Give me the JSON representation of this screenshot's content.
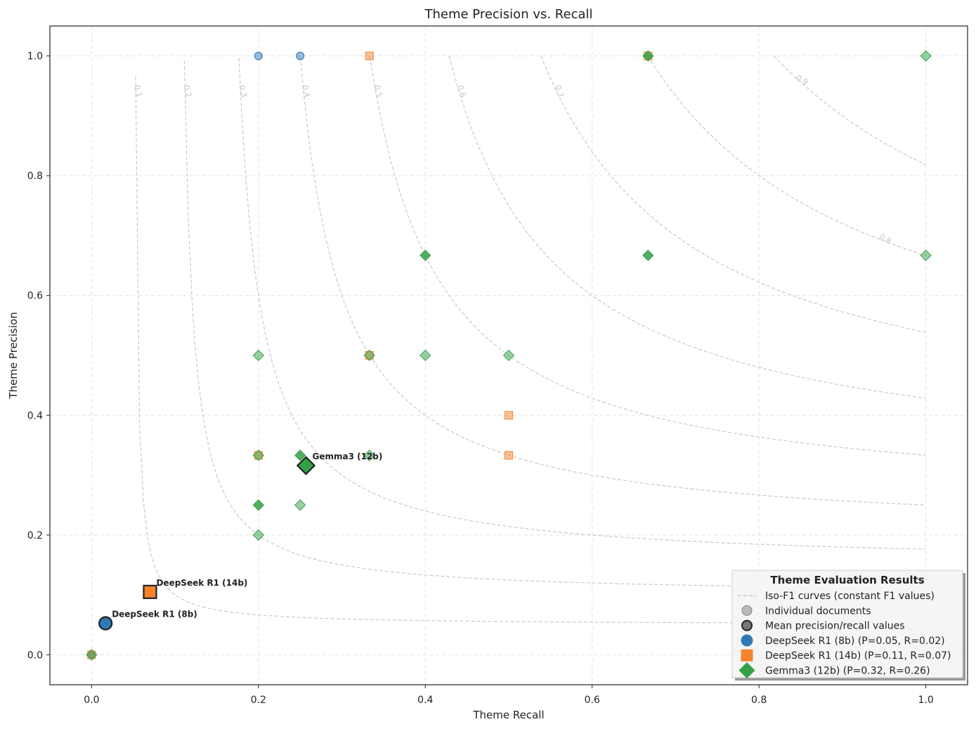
{
  "chart_data": {
    "type": "scatter",
    "title": "Theme Precision vs. Recall",
    "xlabel": "Theme Recall",
    "ylabel": "Theme Precision",
    "xlim": [
      -0.05,
      1.05
    ],
    "ylim": [
      -0.05,
      1.05
    ],
    "xticks": [
      "0.0",
      "0.2",
      "0.4",
      "0.6",
      "0.8",
      "1.0"
    ],
    "yticks": [
      "0.0",
      "0.2",
      "0.4",
      "0.6",
      "0.8",
      "1.0"
    ],
    "grid": true,
    "colors": {
      "deepseek_8b": "#2e7ab6",
      "deepseek_14b": "#f5842b",
      "gemma3_12b": "#34a048",
      "iso_curve": "#c8c8c8"
    },
    "iso_f1": {
      "labels": [
        "0.1",
        "0.2",
        "0.3",
        "0.4",
        "0.5",
        "0.6",
        "0.7",
        "0.8",
        "0.9"
      ],
      "values": [
        0.1,
        0.2,
        0.3,
        0.4,
        0.5,
        0.6,
        0.7,
        0.8,
        0.9
      ]
    },
    "series": [
      {
        "name": "DeepSeek R1 (8b)",
        "marker": "circle",
        "x": [
          0.2,
          0.25,
          0.0
        ],
        "y": [
          1.0,
          1.0,
          0.0
        ],
        "mean": {
          "x": 0.0167,
          "y": 0.0526,
          "label": "DeepSeek R1 (8b)"
        }
      },
      {
        "name": "DeepSeek R1 (14b)",
        "marker": "square",
        "x": [
          0.333,
          0.667,
          0.333,
          0.5,
          0.5,
          0.2,
          0.0
        ],
        "y": [
          1.0,
          1.0,
          0.5,
          0.4,
          0.333,
          0.333,
          0.0
        ],
        "mean": {
          "x": 0.07,
          "y": 0.105,
          "label": "DeepSeek R1 (14b)"
        }
      },
      {
        "name": "Gemma3 (12b)",
        "marker": "diamond",
        "x": [
          0.667,
          1.0,
          0.4,
          0.667,
          1.0,
          0.2,
          0.333,
          0.4,
          0.5,
          0.2,
          0.25,
          0.333,
          0.2,
          0.25,
          0.2,
          0.0
        ],
        "y": [
          1.0,
          1.0,
          0.667,
          0.667,
          0.667,
          0.5,
          0.5,
          0.5,
          0.5,
          0.333,
          0.333,
          0.333,
          0.25,
          0.25,
          0.2,
          0.0
        ],
        "mean": {
          "x": 0.257,
          "y": 0.316,
          "label": "Gemma3 (12b)"
        }
      }
    ],
    "legend": {
      "title": "Theme Evaluation Results",
      "placement": "lower right",
      "entries": [
        "Iso-F1 curves (constant F1 values)",
        "Individual documents",
        "Mean precision/recall values",
        "DeepSeek R1 (8b) (P=0.05, R=0.02)",
        "DeepSeek R1 (14b) (P=0.11, R=0.07)",
        "Gemma3 (12b) (P=0.32, R=0.26)"
      ]
    }
  }
}
